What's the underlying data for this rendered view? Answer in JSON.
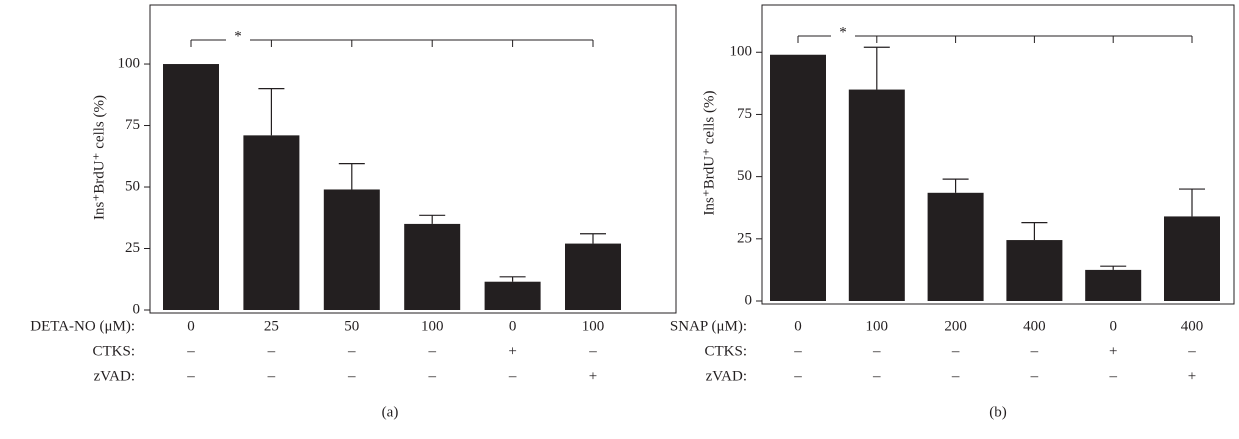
{
  "chart_data": [
    {
      "type": "bar",
      "panel_label": "(a)",
      "y_label": "Ins⁺BrdU⁺ cells (%)",
      "annotation": "*",
      "color": "#231f20",
      "x_label": "DETA-NO (μM):",
      "categories": [
        "0",
        "25",
        "50",
        "100",
        "0",
        "100"
      ],
      "values": [
        100,
        71,
        49,
        35,
        11.5,
        27
      ],
      "errors": [
        0,
        19,
        10.5,
        3.5,
        2,
        4
      ],
      "treatments": [
        {
          "label": "CTKS:",
          "values": [
            "–",
            "–",
            "–",
            "–",
            "+",
            "–"
          ]
        },
        {
          "label": "zVAD:",
          "values": [
            "–",
            "–",
            "–",
            "–",
            "–",
            "+"
          ]
        }
      ],
      "ylim": [
        0,
        124
      ],
      "yticks": [
        0,
        25,
        50,
        75,
        100
      ]
    },
    {
      "type": "bar",
      "panel_label": "(b)",
      "y_label": "Ins⁺BrdU⁺ cells (%)",
      "annotation": "*",
      "color": "#231f20",
      "x_label": "SNAP (μM):",
      "categories": [
        "0",
        "100",
        "200",
        "400",
        "0",
        "400"
      ],
      "values": [
        99,
        85,
        43.5,
        24.5,
        12.5,
        34
      ],
      "errors": [
        0,
        17,
        5.5,
        7,
        1.5,
        11
      ],
      "treatments": [
        {
          "label": "CTKS:",
          "values": [
            "–",
            "–",
            "–",
            "–",
            "+",
            "–"
          ]
        },
        {
          "label": "zVAD:",
          "values": [
            "–",
            "–",
            "–",
            "–",
            "–",
            "+"
          ]
        }
      ],
      "ylim": [
        0,
        119
      ],
      "yticks": [
        0,
        25,
        50,
        75,
        100
      ]
    }
  ]
}
